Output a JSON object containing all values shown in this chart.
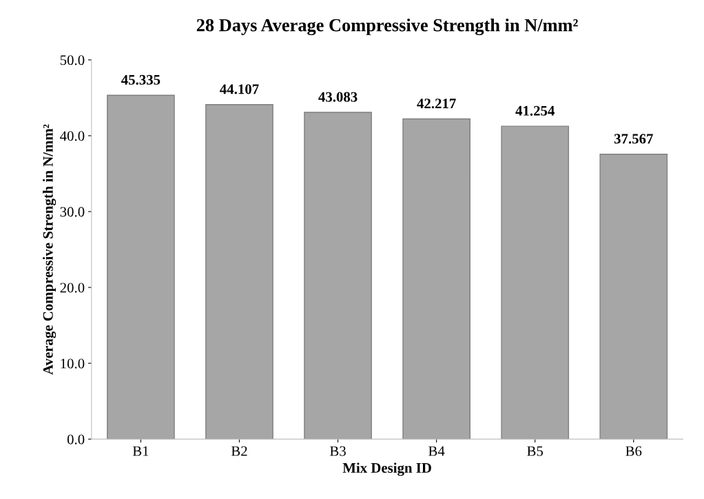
{
  "chart_data": {
    "type": "bar",
    "title": "28 Days Average Compressive Strength in N/mm²",
    "xlabel": "Mix Design ID",
    "ylabel": "Average Compressive Strength in N/mm²",
    "categories": [
      "B1",
      "B2",
      "B3",
      "B4",
      "B5",
      "B6"
    ],
    "values": [
      45.335,
      44.107,
      43.083,
      42.217,
      41.254,
      37.567
    ],
    "color": "#a6a6a6",
    "ylim": [
      0,
      50
    ],
    "yticks": [
      {
        "value": 0,
        "label": "0.0"
      },
      {
        "value": 10,
        "label": "10.0"
      },
      {
        "value": 20,
        "label": "20.0"
      },
      {
        "value": 30,
        "label": "30.0"
      },
      {
        "value": 40,
        "label": "40.0"
      },
      {
        "value": 50,
        "label": "50.0"
      }
    ],
    "data_labels": true,
    "grid": false,
    "legend": false
  }
}
